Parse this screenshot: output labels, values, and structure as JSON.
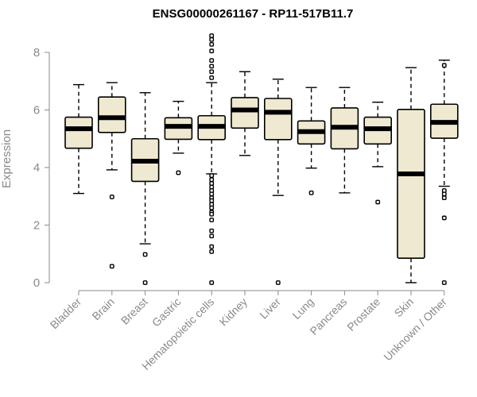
{
  "chart_data": {
    "type": "box",
    "title": "ENSG00000261167 - RP11-517B11.7",
    "xlabel": "",
    "ylabel": "Expression",
    "ylim": [
      0,
      8.6
    ],
    "yticks": [
      0,
      2,
      4,
      6,
      8
    ],
    "grid": false,
    "box_color": "#efe9d1",
    "categories": [
      "Bladder",
      "Brain",
      "Breast",
      "Gastric",
      "Hematopoietic cells",
      "Kidney",
      "Liver",
      "Lung",
      "Pancreas",
      "Prostate",
      "Skin",
      "Unknown / Other"
    ],
    "boxes": [
      {
        "whisker_low": 3.1,
        "q1": 4.67,
        "median": 5.35,
        "q3": 5.75,
        "whisker_high": 6.88,
        "outliers": []
      },
      {
        "whisker_low": 3.92,
        "q1": 5.22,
        "median": 5.73,
        "q3": 6.45,
        "whisker_high": 6.95,
        "outliers": [
          2.98,
          0.57
        ]
      },
      {
        "whisker_low": 1.35,
        "q1": 3.52,
        "median": 4.22,
        "q3": 5.0,
        "whisker_high": 6.6,
        "outliers": [
          0.98,
          0.0
        ]
      },
      {
        "whisker_low": 4.5,
        "q1": 4.98,
        "median": 5.43,
        "q3": 5.73,
        "whisker_high": 6.3,
        "outliers": [
          3.82
        ]
      },
      {
        "whisker_low": 3.78,
        "q1": 4.97,
        "median": 5.43,
        "q3": 5.8,
        "whisker_high": 6.95,
        "outliers": [
          8.58,
          8.45,
          8.28,
          8.05,
          7.72,
          7.52,
          7.33,
          7.12,
          3.72,
          3.58,
          3.45,
          3.32,
          3.2,
          3.08,
          2.95,
          2.85,
          2.72,
          2.6,
          2.45,
          2.38,
          2.18,
          1.8,
          1.62,
          1.25,
          1.08,
          0.0
        ]
      },
      {
        "whisker_low": 4.42,
        "q1": 5.37,
        "median": 6.0,
        "q3": 6.43,
        "whisker_high": 7.33,
        "outliers": []
      },
      {
        "whisker_low": 3.03,
        "q1": 4.97,
        "median": 5.92,
        "q3": 6.4,
        "whisker_high": 7.07,
        "outliers": [
          0.0
        ]
      },
      {
        "whisker_low": 3.98,
        "q1": 4.82,
        "median": 5.25,
        "q3": 5.62,
        "whisker_high": 6.78,
        "outliers": [
          3.12
        ]
      },
      {
        "whisker_low": 3.12,
        "q1": 4.65,
        "median": 5.4,
        "q3": 6.07,
        "whisker_high": 6.78,
        "outliers": []
      },
      {
        "whisker_low": 4.03,
        "q1": 4.82,
        "median": 5.35,
        "q3": 5.75,
        "whisker_high": 6.27,
        "outliers": [
          2.8
        ]
      },
      {
        "whisker_low": 0.0,
        "q1": 0.85,
        "median": 3.78,
        "q3": 6.02,
        "whisker_high": 7.47,
        "outliers": []
      },
      {
        "whisker_low": 3.35,
        "q1": 5.02,
        "median": 5.57,
        "q3": 6.2,
        "whisker_high": 7.73,
        "outliers": [
          7.55,
          3.2,
          3.08,
          2.95,
          2.25,
          0.0
        ]
      }
    ]
  }
}
